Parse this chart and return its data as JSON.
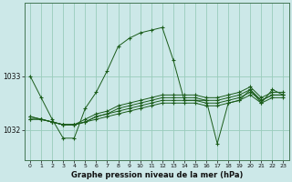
{
  "title": "Graphe pression niveau de la mer (hPa)",
  "bg_color": "#cce8e8",
  "grid_color": "#99ccbb",
  "line_color": "#1a5c1a",
  "xlim": [
    -0.5,
    23.5
  ],
  "ylim": [
    1031.45,
    1034.35
  ],
  "yticks": [
    1032,
    1033
  ],
  "xticks": [
    0,
    1,
    2,
    3,
    4,
    5,
    6,
    7,
    8,
    9,
    10,
    11,
    12,
    13,
    14,
    15,
    16,
    17,
    18,
    19,
    20,
    21,
    22,
    23
  ],
  "main_series": [
    1033.0,
    1032.6,
    1032.2,
    1031.85,
    1031.85,
    1032.4,
    1032.7,
    1033.1,
    1033.55,
    1033.7,
    1033.8,
    1033.85,
    1033.9,
    1033.3,
    1032.55,
    1032.55,
    1032.55,
    1031.75,
    1032.5,
    1032.55,
    1032.75,
    1032.5,
    1032.75,
    1032.65
  ],
  "flat_series": [
    [
      1032.2,
      1032.2,
      1032.15,
      1032.1,
      1032.1,
      1032.15,
      1032.2,
      1032.25,
      1032.3,
      1032.35,
      1032.4,
      1032.45,
      1032.5,
      1032.5,
      1032.5,
      1032.5,
      1032.45,
      1032.45,
      1032.5,
      1032.55,
      1032.65,
      1032.5,
      1032.6,
      1032.6
    ],
    [
      1032.2,
      1032.2,
      1032.15,
      1032.1,
      1032.1,
      1032.15,
      1032.25,
      1032.3,
      1032.35,
      1032.4,
      1032.45,
      1032.5,
      1032.55,
      1032.55,
      1032.55,
      1032.55,
      1032.5,
      1032.5,
      1032.55,
      1032.6,
      1032.7,
      1032.55,
      1032.65,
      1032.65
    ],
    [
      1032.25,
      1032.2,
      1032.15,
      1032.1,
      1032.1,
      1032.15,
      1032.25,
      1032.3,
      1032.4,
      1032.45,
      1032.5,
      1032.55,
      1032.6,
      1032.6,
      1032.6,
      1032.6,
      1032.55,
      1032.55,
      1032.6,
      1032.65,
      1032.75,
      1032.55,
      1032.65,
      1032.65
    ],
    [
      1032.25,
      1032.2,
      1032.15,
      1032.1,
      1032.1,
      1032.2,
      1032.3,
      1032.35,
      1032.45,
      1032.5,
      1032.55,
      1032.6,
      1032.65,
      1032.65,
      1032.65,
      1032.65,
      1032.6,
      1032.6,
      1032.65,
      1032.7,
      1032.8,
      1032.6,
      1032.7,
      1032.7
    ]
  ]
}
